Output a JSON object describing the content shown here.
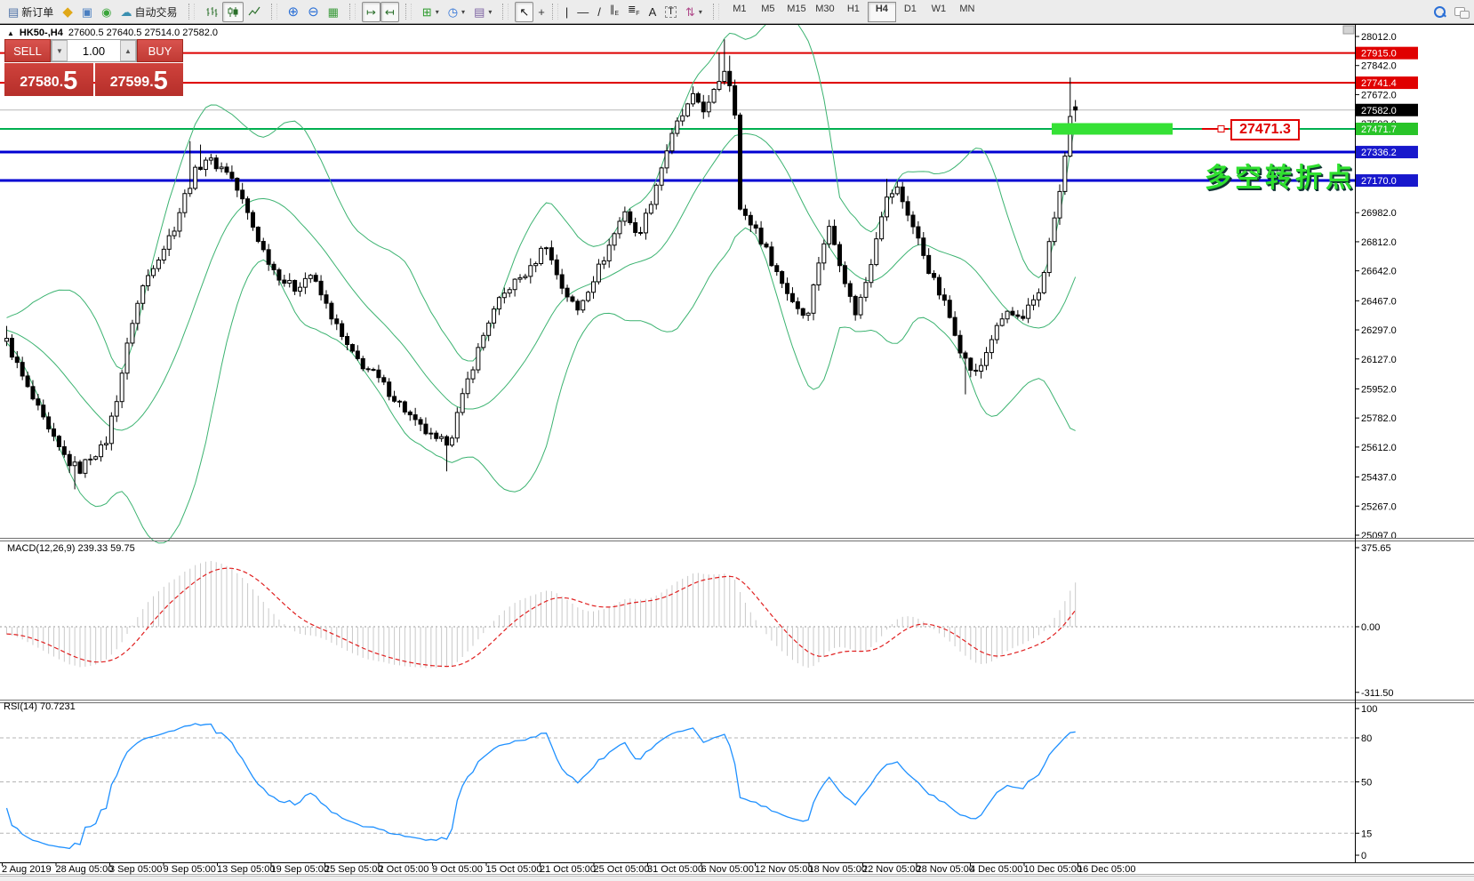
{
  "toolbar": {
    "new_order_label": "新订单",
    "autotrading_label": "自动交易",
    "timeframes": [
      "M1",
      "M5",
      "M15",
      "M30",
      "H1",
      "H4",
      "D1",
      "W1",
      "MN"
    ],
    "active_timeframe": "H4",
    "icons": [
      "new-order",
      "metaeditor",
      "terminal",
      "signals",
      "autotrading",
      "bar-chart",
      "candlestick-chart",
      "line-chart",
      "zoom-in",
      "zoom-out",
      "tile-windows",
      "auto-scroll",
      "chart-shift",
      "indicators-add",
      "periods-clock",
      "templates",
      "cursor",
      "crosshair",
      "vertical-line",
      "horizontal-line",
      "trend-line",
      "equidistant-channel",
      "fibonacci",
      "text",
      "text-label",
      "arrows",
      "search",
      "chat"
    ]
  },
  "chart": {
    "title_symbol": "HK50-,H4",
    "title_ohlc": "27600.5 27640.5 27514.0 27582.0"
  },
  "trade_panel": {
    "sell_label": "SELL",
    "buy_label": "BUY",
    "volume": "1.00",
    "sell_price_main": "27580.",
    "sell_price_big": "5",
    "buy_price_main": "27599.",
    "buy_price_big": "5"
  },
  "chart_data": {
    "type": "candlestick",
    "symbol": "HK50-",
    "timeframe": "H4",
    "last_candle": {
      "open": 27600.5,
      "high": 27640.5,
      "low": 27514.0,
      "close": 27582.0
    },
    "y_ticks": [
      28012.0,
      27842.0,
      27672.0,
      27502.0,
      27332.0,
      27157.0,
      26982.0,
      26812.0,
      26642.0,
      26467.0,
      26297.0,
      26127.0,
      25952.0,
      25782.0,
      25612.0,
      25437.0,
      25267.0,
      25097.0
    ],
    "price_lines": [
      {
        "price": 27915.0,
        "label": "27915.0",
        "line_color": "#dd0000",
        "badge_color": "#e00000",
        "width": 2
      },
      {
        "price": 27741.4,
        "label": "27741.4",
        "line_color": "#dd0000",
        "badge_color": "#e00000",
        "width": 2
      },
      {
        "price": 27582.0,
        "label": "27582.0",
        "line_color": "#b8b8b8",
        "badge_color": "#000000",
        "width": 1
      },
      {
        "price": 27471.7,
        "label": "27471.7",
        "line_color": "#00b050",
        "badge_color": "#28c428",
        "width": 2
      },
      {
        "price": 27336.2,
        "label": "27336.2",
        "line_color": "#0000d2",
        "badge_color": "#1818cc",
        "width": 3
      },
      {
        "price": 27170.0,
        "label": "27170.0",
        "line_color": "#0000d2",
        "badge_color": "#1818cc",
        "width": 3
      }
    ],
    "highlight_bar": {
      "price": 27471.7,
      "color": "#35e135"
    },
    "callout": {
      "text": "27471.3",
      "color": "#e00000"
    },
    "annotation": {
      "text": "多空转折点",
      "color": "#2fe02f"
    },
    "x_labels": [
      "2 Aug 2019",
      "28 Aug 05:00",
      "3 Sep 05:00",
      "9 Sep 05:00",
      "13 Sep 05:00",
      "19 Sep 05:00",
      "25 Sep 05:00",
      "2 Oct 05:00",
      "9 Oct 05:00",
      "15 Oct 05:00",
      "21 Oct 05:00",
      "25 Oct 05:00",
      "31 Oct 05:00",
      "6 Nov 05:00",
      "12 Nov 05:00",
      "18 Nov 05:00",
      "22 Nov 05:00",
      "28 Nov 05:00",
      "4 Dec 05:00",
      "10 Dec 05:00",
      "16 Dec 05:00"
    ],
    "candle_count": 205,
    "price_anchors": [
      [
        0,
        26230
      ],
      [
        2,
        26090
      ],
      [
        4,
        25950
      ],
      [
        6,
        25830
      ],
      [
        8,
        25700
      ],
      [
        10,
        25600
      ],
      [
        12,
        25520
      ],
      [
        14,
        25480
      ],
      [
        16,
        25560
      ],
      [
        18,
        25600
      ],
      [
        19,
        25650
      ],
      [
        20,
        25780
      ],
      [
        21,
        25900
      ],
      [
        22,
        26050
      ],
      [
        24,
        26350
      ],
      [
        26,
        26550
      ],
      [
        28,
        26680
      ],
      [
        30,
        26780
      ],
      [
        32,
        26900
      ],
      [
        34,
        27080
      ],
      [
        36,
        27220
      ],
      [
        38,
        27300
      ],
      [
        40,
        27260
      ],
      [
        42,
        27230
      ],
      [
        43,
        27180
      ],
      [
        45,
        27050
      ],
      [
        47,
        26900
      ],
      [
        49,
        26760
      ],
      [
        51,
        26650
      ],
      [
        53,
        26580
      ],
      [
        55,
        26540
      ],
      [
        57,
        26600
      ],
      [
        58,
        26620
      ],
      [
        60,
        26500
      ],
      [
        62,
        26380
      ],
      [
        64,
        26250
      ],
      [
        66,
        26150
      ],
      [
        68,
        26090
      ],
      [
        70,
        26040
      ],
      [
        72,
        25970
      ],
      [
        74,
        25900
      ],
      [
        76,
        25830
      ],
      [
        78,
        25750
      ],
      [
        80,
        25700
      ],
      [
        82,
        25640
      ],
      [
        84,
        25650
      ],
      [
        85,
        25690
      ],
      [
        86,
        25800
      ],
      [
        88,
        26000
      ],
      [
        90,
        26180
      ],
      [
        92,
        26350
      ],
      [
        94,
        26460
      ],
      [
        96,
        26550
      ],
      [
        98,
        26600
      ],
      [
        100,
        26650
      ],
      [
        102,
        26760
      ],
      [
        103,
        26800
      ],
      [
        104,
        26700
      ],
      [
        106,
        26550
      ],
      [
        108,
        26450
      ],
      [
        109,
        26410
      ],
      [
        110,
        26480
      ],
      [
        112,
        26600
      ],
      [
        114,
        26720
      ],
      [
        116,
        26860
      ],
      [
        118,
        27000
      ],
      [
        119,
        26930
      ],
      [
        120,
        26850
      ],
      [
        121,
        26890
      ],
      [
        122,
        26960
      ],
      [
        124,
        27150
      ],
      [
        126,
        27350
      ],
      [
        128,
        27500
      ],
      [
        130,
        27600
      ],
      [
        131,
        27650
      ],
      [
        132,
        27630
      ],
      [
        133,
        27590
      ],
      [
        134,
        27610
      ],
      [
        135,
        27680
      ],
      [
        136,
        27760
      ],
      [
        137,
        27820
      ],
      [
        138,
        27740
      ],
      [
        139,
        27580
      ],
      [
        140,
        27000
      ],
      [
        141,
        26950
      ],
      [
        142,
        26920
      ],
      [
        143,
        26890
      ],
      [
        144,
        26820
      ],
      [
        145,
        26760
      ],
      [
        146,
        26700
      ],
      [
        148,
        26570
      ],
      [
        150,
        26470
      ],
      [
        152,
        26390
      ],
      [
        153,
        26420
      ],
      [
        154,
        26550
      ],
      [
        155,
        26700
      ],
      [
        156,
        26810
      ],
      [
        157,
        26890
      ],
      [
        158,
        26800
      ],
      [
        159,
        26700
      ],
      [
        160,
        26590
      ],
      [
        161,
        26480
      ],
      [
        162,
        26400
      ],
      [
        163,
        26480
      ],
      [
        164,
        26580
      ],
      [
        165,
        26700
      ],
      [
        166,
        26850
      ],
      [
        167,
        26980
      ],
      [
        168,
        27060
      ],
      [
        169,
        27100
      ],
      [
        170,
        27120
      ],
      [
        171,
        27050
      ],
      [
        172,
        26980
      ],
      [
        173,
        26900
      ],
      [
        174,
        26820
      ],
      [
        175,
        26740
      ],
      [
        176,
        26650
      ],
      [
        177,
        26580
      ],
      [
        178,
        26510
      ],
      [
        179,
        26450
      ],
      [
        180,
        26370
      ],
      [
        181,
        26290
      ],
      [
        182,
        26190
      ],
      [
        183,
        26120
      ],
      [
        184,
        26070
      ],
      [
        185,
        26040
      ],
      [
        186,
        26090
      ],
      [
        187,
        26170
      ],
      [
        188,
        26250
      ],
      [
        189,
        26300
      ],
      [
        190,
        26360
      ],
      [
        191,
        26400
      ],
      [
        192,
        26380
      ],
      [
        193,
        26360
      ],
      [
        194,
        26340
      ],
      [
        195,
        26420
      ],
      [
        196,
        26470
      ],
      [
        197,
        26520
      ],
      [
        198,
        26650
      ],
      [
        199,
        26800
      ],
      [
        200,
        26950
      ],
      [
        201,
        27100
      ],
      [
        202,
        27300
      ],
      [
        203,
        27560
      ],
      [
        204,
        27582
      ]
    ],
    "spike_highs": [
      [
        0,
        26320
      ],
      [
        35,
        27400
      ],
      [
        37,
        27380
      ],
      [
        136,
        27915
      ],
      [
        137,
        27995
      ],
      [
        138,
        27900
      ],
      [
        168,
        27180
      ],
      [
        203,
        27772
      ]
    ],
    "spike_lows": [
      [
        13,
        25365
      ],
      [
        84,
        25470
      ],
      [
        183,
        25920
      ]
    ],
    "pre_trend": {
      "start": 26480,
      "step": -6,
      "count": 40
    },
    "indicators": {
      "bollinger": {
        "period": 20,
        "deviation": 2,
        "color": "#3cb371"
      },
      "macd": {
        "label_full": "MACD(12,26,9) 239.33 59.75",
        "fast": 12,
        "slow": 26,
        "signal": 9,
        "value_main": 239.33,
        "value_signal": 59.75,
        "axis_ticks": [
          375.65,
          0.0,
          -311.5
        ],
        "histogram_color": "#c9c9c9",
        "signal_color": "#e02020"
      },
      "rsi": {
        "label_full": "RSI(14) 70.7231",
        "period": 14,
        "value": 70.7231,
        "axis_ticks": [
          100,
          80,
          50,
          15,
          0
        ],
        "levels": [
          80,
          50,
          15
        ],
        "line_color": "#1e90ff"
      }
    }
  }
}
